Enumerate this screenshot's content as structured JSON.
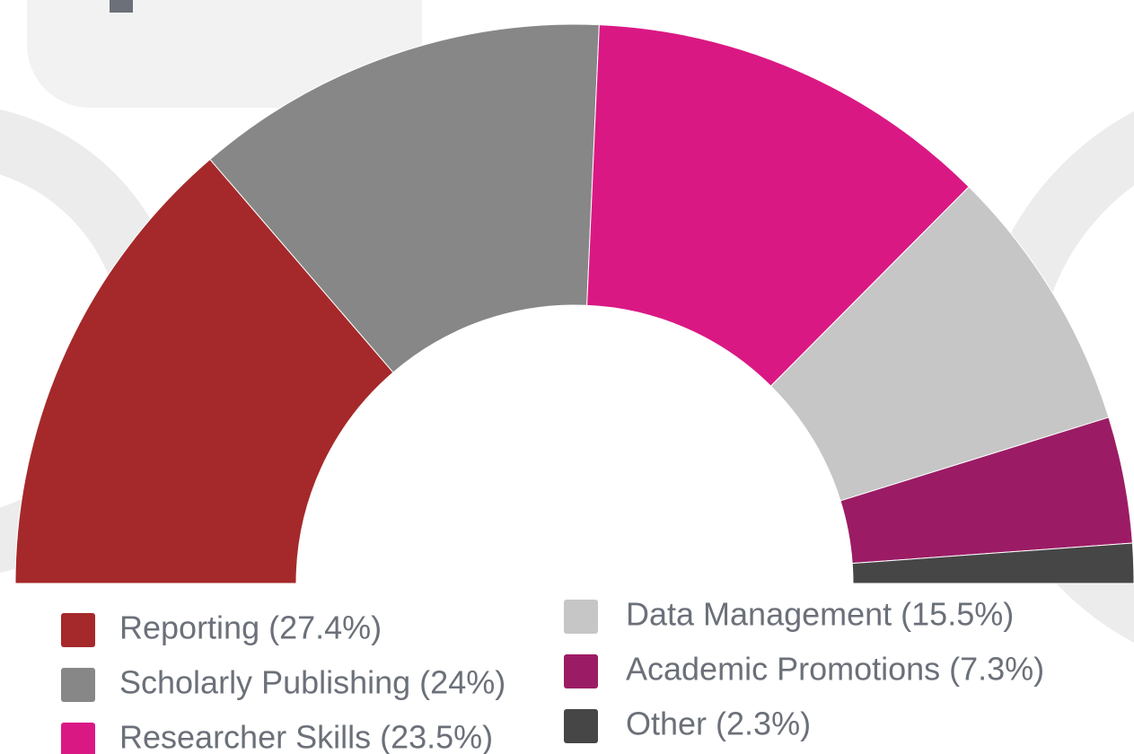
{
  "chart_data": {
    "type": "half-donut",
    "categories": [
      "Reporting (27.4%)",
      "Scholarly Publishing (24%)",
      "Researcher Skills (23.5%)",
      "Data Management (15.5%)",
      "Academic Promotions (7.3%)",
      "Other (2.3%)"
    ],
    "values": [
      27.4,
      24,
      23.5,
      15.5,
      7.3,
      2.3
    ],
    "colors": [
      "#a5292a",
      "#878787",
      "#da1884",
      "#c6c6c6",
      "#9b1c65",
      "#464646"
    ]
  }
}
